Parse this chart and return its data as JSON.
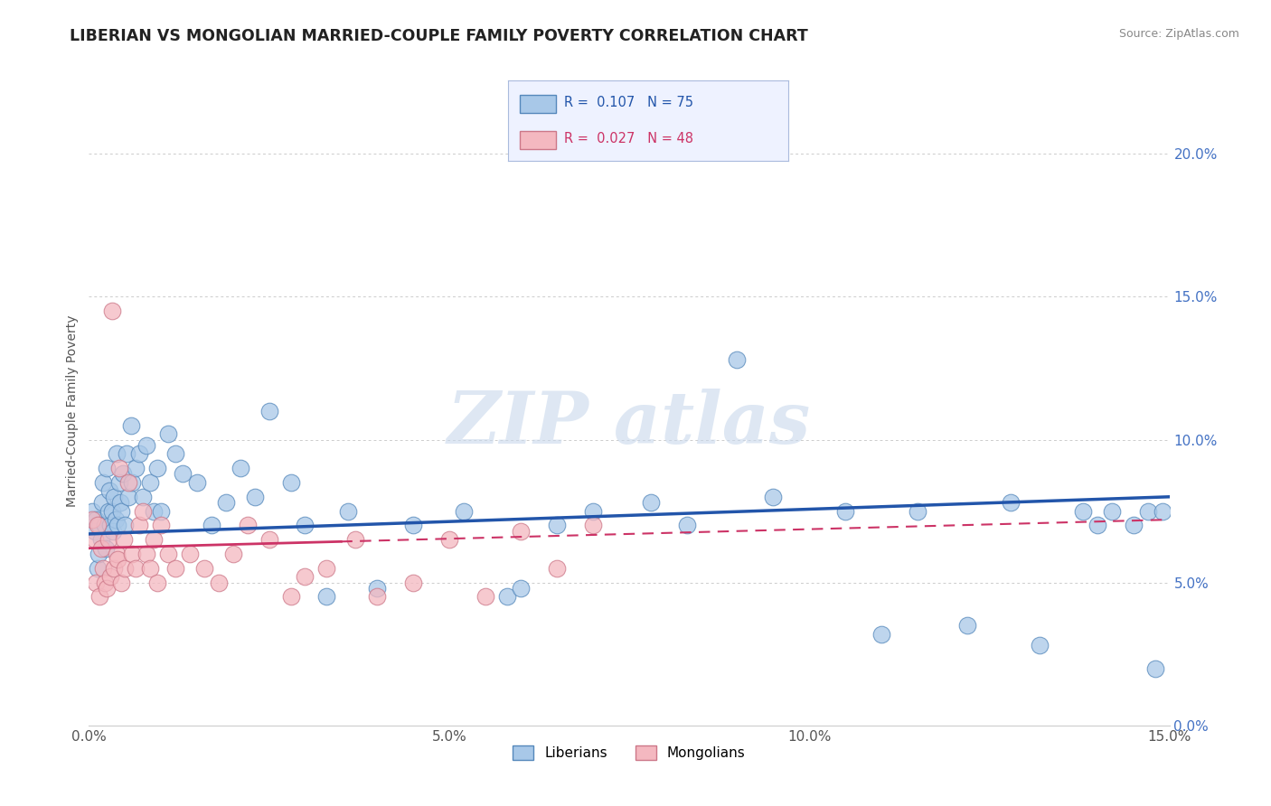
{
  "title": "LIBERIAN VS MONGOLIAN MARRIED-COUPLE FAMILY POVERTY CORRELATION CHART",
  "source": "Source: ZipAtlas.com",
  "ylabel": "Married-Couple Family Poverty",
  "xlim": [
    0.0,
    15.0
  ],
  "ylim": [
    0.0,
    22.0
  ],
  "x_ticks": [
    0.0,
    5.0,
    10.0,
    15.0
  ],
  "y_ticks": [
    0.0,
    5.0,
    10.0,
    15.0,
    20.0
  ],
  "liberian_color": "#a8c8e8",
  "mongolian_color": "#f4b8c0",
  "liberian_edge": "#5588bb",
  "mongolian_edge": "#cc7788",
  "regression_blue": "#2255aa",
  "regression_pink": "#cc3366",
  "R_liberian": 0.107,
  "N_liberian": 75,
  "R_mongolian": 0.027,
  "N_mongolian": 48,
  "background_color": "#ffffff",
  "grid_color": "#cccccc",
  "liberian_x": [
    0.05,
    0.08,
    0.1,
    0.12,
    0.13,
    0.15,
    0.17,
    0.18,
    0.2,
    0.22,
    0.23,
    0.25,
    0.27,
    0.28,
    0.3,
    0.32,
    0.33,
    0.35,
    0.37,
    0.38,
    0.4,
    0.42,
    0.43,
    0.45,
    0.47,
    0.5,
    0.52,
    0.55,
    0.58,
    0.6,
    0.65,
    0.7,
    0.75,
    0.8,
    0.85,
    0.9,
    0.95,
    1.0,
    1.1,
    1.2,
    1.3,
    1.5,
    1.7,
    1.9,
    2.1,
    2.3,
    2.5,
    2.8,
    3.0,
    3.3,
    3.6,
    4.0,
    4.5,
    5.2,
    5.8,
    6.0,
    6.5,
    7.0,
    7.8,
    8.3,
    9.0,
    9.5,
    10.5,
    11.0,
    11.5,
    12.2,
    12.8,
    13.2,
    13.8,
    14.0,
    14.2,
    14.5,
    14.7,
    14.8,
    14.9
  ],
  "liberian_y": [
    7.5,
    6.8,
    7.2,
    5.5,
    6.0,
    7.0,
    6.5,
    7.8,
    8.5,
    7.0,
    6.2,
    9.0,
    7.5,
    8.2,
    7.0,
    7.5,
    6.8,
    8.0,
    7.2,
    9.5,
    7.0,
    8.5,
    7.8,
    7.5,
    8.8,
    7.0,
    9.5,
    8.0,
    10.5,
    8.5,
    9.0,
    9.5,
    8.0,
    9.8,
    8.5,
    7.5,
    9.0,
    7.5,
    10.2,
    9.5,
    8.8,
    8.5,
    7.0,
    7.8,
    9.0,
    8.0,
    11.0,
    8.5,
    7.0,
    4.5,
    7.5,
    4.8,
    7.0,
    7.5,
    4.5,
    4.8,
    7.0,
    7.5,
    7.8,
    7.0,
    12.8,
    8.0,
    7.5,
    3.2,
    7.5,
    3.5,
    7.8,
    2.8,
    7.5,
    7.0,
    7.5,
    7.0,
    7.5,
    2.0,
    7.5
  ],
  "mongolian_x": [
    0.05,
    0.08,
    0.1,
    0.12,
    0.15,
    0.17,
    0.2,
    0.22,
    0.25,
    0.27,
    0.3,
    0.32,
    0.35,
    0.38,
    0.4,
    0.42,
    0.45,
    0.48,
    0.5,
    0.55,
    0.6,
    0.65,
    0.7,
    0.75,
    0.8,
    0.85,
    0.9,
    0.95,
    1.0,
    1.1,
    1.2,
    1.4,
    1.6,
    1.8,
    2.0,
    2.2,
    2.5,
    2.8,
    3.0,
    3.3,
    3.7,
    4.0,
    4.5,
    5.0,
    5.5,
    6.0,
    6.5,
    7.0
  ],
  "mongolian_y": [
    7.2,
    6.5,
    5.0,
    7.0,
    4.5,
    6.2,
    5.5,
    5.0,
    4.8,
    6.5,
    5.2,
    14.5,
    5.5,
    6.0,
    5.8,
    9.0,
    5.0,
    6.5,
    5.5,
    8.5,
    6.0,
    5.5,
    7.0,
    7.5,
    6.0,
    5.5,
    6.5,
    5.0,
    7.0,
    6.0,
    5.5,
    6.0,
    5.5,
    5.0,
    6.0,
    7.0,
    6.5,
    4.5,
    5.2,
    5.5,
    6.5,
    4.5,
    5.0,
    6.5,
    4.5,
    6.8,
    5.5,
    7.0
  ],
  "reg_liberian_x0": 0.0,
  "reg_liberian_y0": 6.7,
  "reg_liberian_x1": 15.0,
  "reg_liberian_y1": 8.0,
  "reg_mongolian_x0": 0.0,
  "reg_mongolian_y0": 6.2,
  "reg_mongolian_x1": 15.0,
  "reg_mongolian_y1": 7.2
}
